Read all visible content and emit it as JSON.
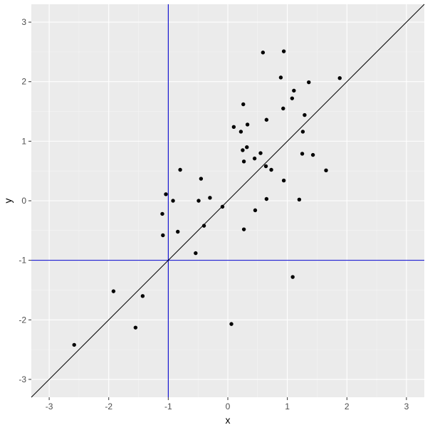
{
  "chart_data": {
    "type": "scatter",
    "title": "",
    "xlabel": "x",
    "ylabel": "y",
    "xlim": [
      -3.3,
      3.3
    ],
    "ylim": [
      -3.3,
      3.3
    ],
    "x_ticks": [
      -3,
      -2,
      -1,
      0,
      1,
      2,
      3
    ],
    "y_ticks": [
      -3,
      -2,
      -1,
      0,
      1,
      2,
      3
    ],
    "x_tick_labels": [
      "-3",
      "-2",
      "-1",
      "0",
      "1",
      "2",
      "3"
    ],
    "y_tick_labels": [
      "-3",
      "-2",
      "-1",
      "0",
      "1",
      "2",
      "3"
    ],
    "grid": true,
    "legend": "none",
    "point_color": "#000000",
    "reference_lines": [
      {
        "kind": "vertical",
        "x": -1,
        "color": "#0000cc"
      },
      {
        "kind": "horizontal",
        "y": -1,
        "color": "#0000cc"
      },
      {
        "kind": "diagonal",
        "intercept": 0,
        "slope": 1,
        "color": "#000000"
      }
    ],
    "points": [
      {
        "x": -2.58,
        "y": -2.42
      },
      {
        "x": -1.92,
        "y": -1.52
      },
      {
        "x": -1.55,
        "y": -2.13
      },
      {
        "x": -1.43,
        "y": -1.6
      },
      {
        "x": -1.1,
        "y": -0.22
      },
      {
        "x": -1.09,
        "y": -0.58
      },
      {
        "x": -1.04,
        "y": 0.11
      },
      {
        "x": -0.92,
        "y": 0.0
      },
      {
        "x": -0.84,
        "y": -0.52
      },
      {
        "x": -0.8,
        "y": 0.52
      },
      {
        "x": -0.54,
        "y": -0.88
      },
      {
        "x": -0.49,
        "y": 0.0
      },
      {
        "x": -0.45,
        "y": 0.37
      },
      {
        "x": -0.4,
        "y": -0.42
      },
      {
        "x": -0.3,
        "y": 0.05
      },
      {
        "x": -0.09,
        "y": -0.1
      },
      {
        "x": 0.06,
        "y": -2.07
      },
      {
        "x": 0.1,
        "y": 1.24
      },
      {
        "x": 0.22,
        "y": 1.16
      },
      {
        "x": 0.25,
        "y": 0.85
      },
      {
        "x": 0.26,
        "y": 1.62
      },
      {
        "x": 0.27,
        "y": 0.66
      },
      {
        "x": 0.27,
        "y": -0.48
      },
      {
        "x": 0.32,
        "y": 0.9
      },
      {
        "x": 0.33,
        "y": 1.28
      },
      {
        "x": 0.45,
        "y": 0.71
      },
      {
        "x": 0.46,
        "y": -0.16
      },
      {
        "x": 0.55,
        "y": 0.8
      },
      {
        "x": 0.59,
        "y": 2.49
      },
      {
        "x": 0.64,
        "y": 0.58
      },
      {
        "x": 0.65,
        "y": 1.36
      },
      {
        "x": 0.65,
        "y": 0.03
      },
      {
        "x": 0.73,
        "y": 0.52
      },
      {
        "x": 0.89,
        "y": 2.07
      },
      {
        "x": 0.93,
        "y": 1.55
      },
      {
        "x": 0.94,
        "y": 2.51
      },
      {
        "x": 0.94,
        "y": 0.34
      },
      {
        "x": 1.08,
        "y": 1.72
      },
      {
        "x": 1.09,
        "y": -1.28
      },
      {
        "x": 1.11,
        "y": 1.85
      },
      {
        "x": 1.2,
        "y": 0.02
      },
      {
        "x": 1.25,
        "y": 0.79
      },
      {
        "x": 1.26,
        "y": 1.16
      },
      {
        "x": 1.29,
        "y": 1.44
      },
      {
        "x": 1.36,
        "y": 1.99
      },
      {
        "x": 1.43,
        "y": 0.77
      },
      {
        "x": 1.65,
        "y": 0.51
      },
      {
        "x": 1.88,
        "y": 2.06
      }
    ]
  }
}
